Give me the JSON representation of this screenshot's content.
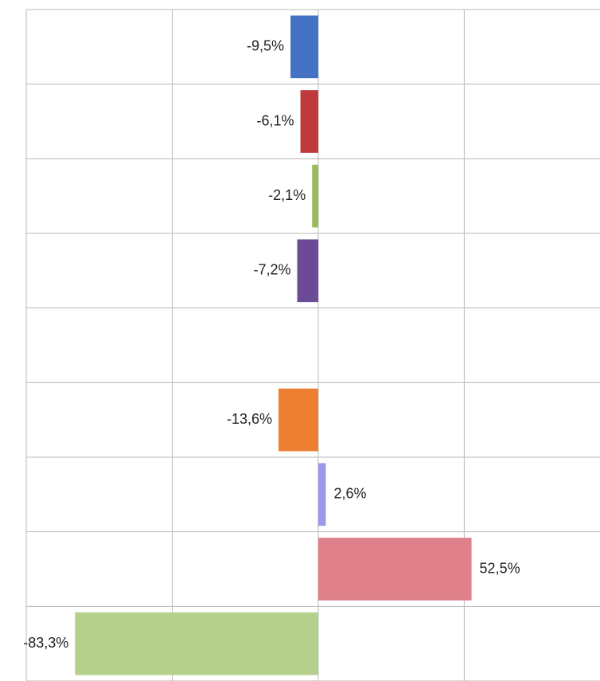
{
  "chart_data": {
    "type": "hbar",
    "categories": [
      null,
      null,
      null,
      null,
      null,
      null,
      null,
      null,
      null
    ],
    "values": [
      -9.5,
      -6.1,
      -2.1,
      -7.2,
      null,
      -13.6,
      2.6,
      52.5,
      -83.3
    ],
    "value_labels": [
      "-9,5%",
      "-6,1%",
      "-2,1%",
      "-7,2%",
      null,
      "-13,6%",
      "2,6%",
      "52,5%",
      "-83,3%"
    ],
    "colors": [
      "#4472c4",
      "#c0393b",
      "#9bbb59",
      "#6b4a96",
      null,
      "#ed7d31",
      "#9a9ae8",
      "#e0808a",
      "#b5d08c"
    ],
    "xlim": [
      -100,
      96.5
    ],
    "xticks": [
      -100,
      -50,
      0,
      50
    ],
    "grid": true
  }
}
